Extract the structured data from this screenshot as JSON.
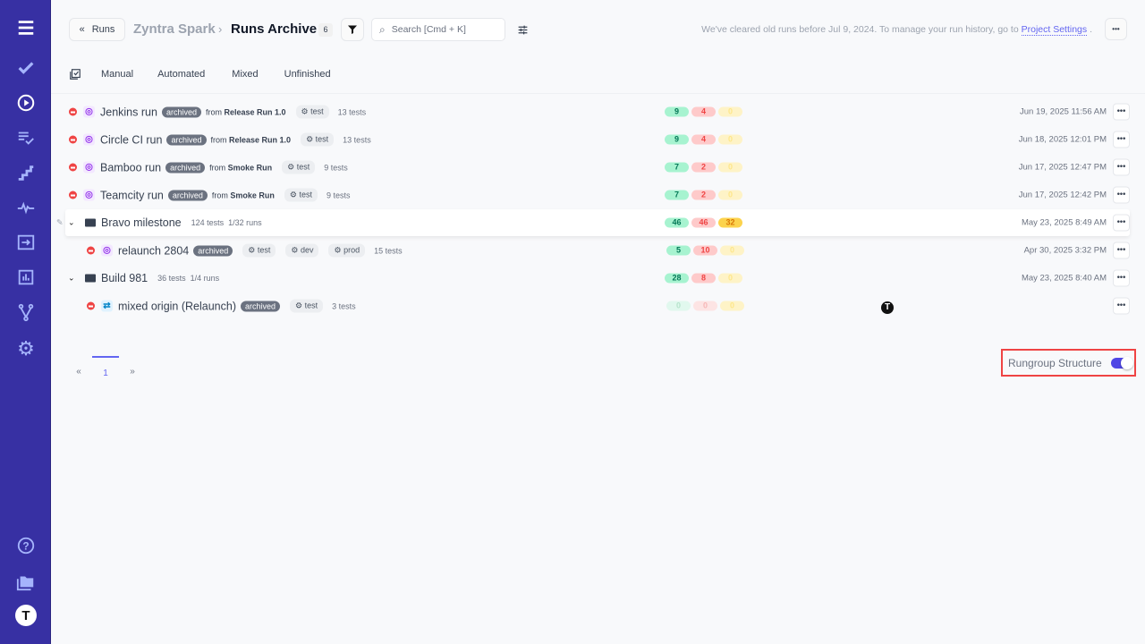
{
  "sidebar": {
    "accent": "#3730a3",
    "items": [
      "menu-icon",
      "check-icon",
      "play-icon",
      "list-check-icon",
      "stairs-icon",
      "pulse-icon",
      "import-icon",
      "chart-icon",
      "branch-icon",
      "gear-icon"
    ],
    "bottom": [
      "help-icon",
      "folder-icon",
      "avatar"
    ],
    "avatar_letter": "T"
  },
  "header": {
    "back_label": "Runs",
    "project": "Zyntra Spark",
    "separator": "›",
    "title": "Runs Archive",
    "count": "6",
    "search_placeholder": "Search [Cmd + K]",
    "notice": "We've cleared old runs before Jul 9, 2024. To manage your run history, go to",
    "notice_link": "Project Settings",
    "notice_end": ".",
    "more": "•••"
  },
  "tabs": [
    "Manual",
    "Automated",
    "Mixed",
    "Unfinished"
  ],
  "rows": [
    {
      "type": "run",
      "name": "Jenkins run",
      "badge": "archived",
      "from": "from",
      "source": "Release Run 1.0",
      "tags": [
        "test"
      ],
      "tests": "13 tests",
      "passed": "9",
      "failed": "4",
      "skipped": "0",
      "date": "Jun 19, 2025 11:56 AM"
    },
    {
      "type": "run",
      "name": "Circle CI run",
      "badge": "archived",
      "from": "from",
      "source": "Release Run 1.0",
      "tags": [
        "test"
      ],
      "tests": "13 tests",
      "passed": "9",
      "failed": "4",
      "skipped": "0",
      "date": "Jun 18, 2025 12:01 PM"
    },
    {
      "type": "run",
      "name": "Bamboo run",
      "badge": "archived",
      "from": "from",
      "source": "Smoke Run",
      "tags": [
        "test"
      ],
      "tests": "9 tests",
      "passed": "7",
      "failed": "2",
      "skipped": "0",
      "date": "Jun 17, 2025 12:47 PM"
    },
    {
      "type": "run",
      "name": "Teamcity run",
      "badge": "archived",
      "from": "from",
      "source": "Smoke Run",
      "tags": [
        "test"
      ],
      "tests": "9 tests",
      "passed": "7",
      "failed": "2",
      "skipped": "0",
      "date": "Jun 17, 2025 12:42 PM"
    },
    {
      "type": "group",
      "name": "Bravo milestone",
      "tests": "124 tests",
      "runs": "1/32 runs",
      "passed": "46",
      "failed": "46",
      "skipped": "32",
      "date": "May 23, 2025 8:49 AM"
    },
    {
      "type": "child",
      "name": "relaunch 2804",
      "badge": "archived",
      "tags": [
        "test",
        "dev",
        "prod"
      ],
      "tests": "15 tests",
      "passed": "5",
      "failed": "10",
      "skipped": "0",
      "date": "Apr 30, 2025 3:32 PM"
    },
    {
      "type": "group",
      "name": "Build 981",
      "tests": "36 tests",
      "runs": "1/4 runs",
      "passed": "28",
      "failed": "8",
      "skipped": "0",
      "date": "May 23, 2025 8:40 AM"
    },
    {
      "type": "child",
      "name": "mixed origin (Relaunch)",
      "badge": "archived",
      "tags": [
        "test"
      ],
      "tests": "3 tests",
      "passed": "0",
      "failed": "0",
      "skipped": "0",
      "date": ""
    }
  ],
  "pagination": {
    "prev": "«",
    "current": "1",
    "next": "»"
  },
  "toggle": {
    "label": "Rungroup Structure",
    "on": true
  },
  "cursor_letter": "T"
}
